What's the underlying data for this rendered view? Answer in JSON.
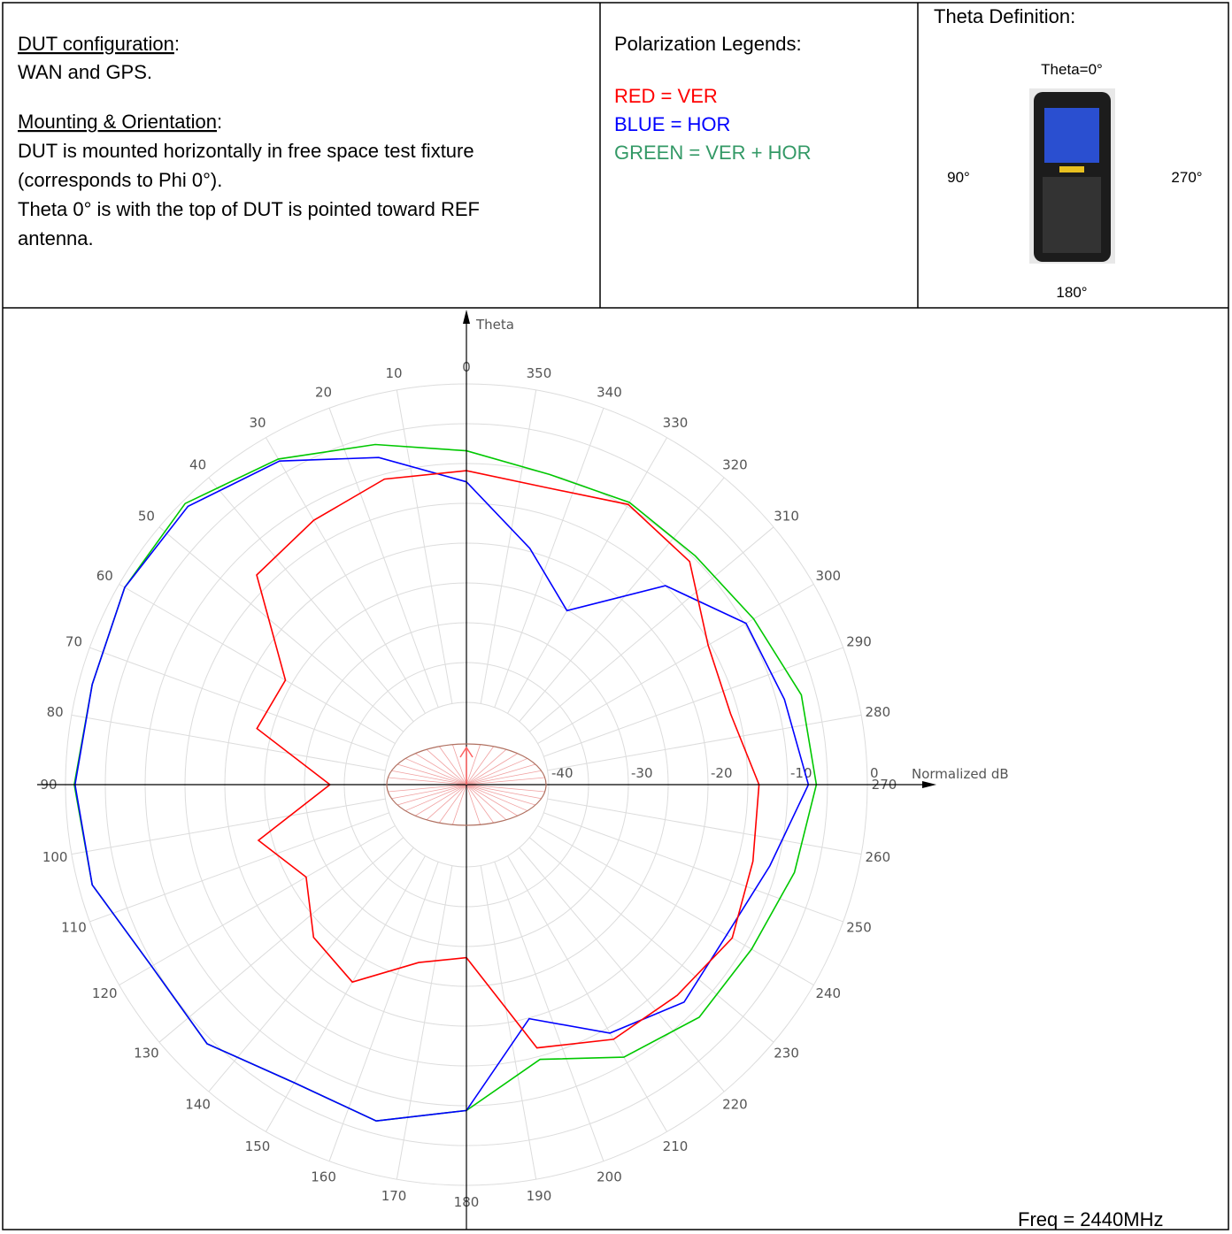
{
  "config": {
    "dut_heading": {
      "underlined": "DUT configuration",
      "rest": ":"
    },
    "dut_text": "WAN and GPS.",
    "mount_heading": {
      "underlined": "Mounting & Orientation",
      "rest": ":"
    },
    "mount_lines": [
      "DUT is mounted horizontally in free space test fixture",
      "(corresponds to Phi 0°).",
      "Theta 0° is with the top of DUT is pointed toward REF",
      "antenna."
    ]
  },
  "legend_title": "Polarization Legends:",
  "theta_definition": {
    "title": "Theta Definition:",
    "top": "Theta=0°",
    "left": "90°",
    "right": "270°",
    "bottom": "180°"
  },
  "freq": "Freq = 2440MHz",
  "chart_data": {
    "type": "polar",
    "theta_label": "Theta",
    "r_label": "Normalized dB",
    "x": [
      0,
      15,
      30,
      45,
      60,
      75,
      90,
      105,
      120,
      135,
      150,
      165,
      180,
      195,
      210,
      225,
      240,
      255,
      270,
      285,
      300,
      315,
      330,
      345
    ],
    "series": [
      {
        "name": "RED = VER",
        "color": "#ff0000",
        "values": [
          -10.9,
          -10.6,
          -12.0,
          -13.1,
          -24.1,
          -23.1,
          -33.2,
          -23.3,
          -27.1,
          -23.2,
          -21.7,
          -27.2,
          -28.6,
          -16.1,
          -13.4,
          -12.9,
          -11.8,
          -13.1,
          -13.6,
          -16.0,
          -15.3,
          -10.7,
          -9.7,
          -11.7
        ]
      },
      {
        "name": "BLUE = HOR",
        "color": "#0000ff",
        "values": [
          -12.3,
          -7.8,
          -3.4,
          -0.9,
          -0.8,
          -1.7,
          -1.2,
          -1.7,
          -4.7,
          -4.3,
          -7.1,
          -6.6,
          -9.4,
          -19.9,
          -14.3,
          -11.7,
          -12.6,
          -10.9,
          -7.4,
          -9.0,
          -9.8,
          -15.0,
          -25.1,
          -19.6
        ]
      },
      {
        "name": "GREEN = VER + HOR",
        "color": "#00c800",
        "values": [
          -8.4,
          -6.1,
          -3.1,
          -0.4,
          -0.8,
          -1.7,
          -1.1,
          -1.7,
          -4.7,
          -4.3,
          -7.1,
          -6.6,
          -9.4,
          -14.6,
          -10.8,
          -9.0,
          -9.0,
          -7.7,
          -6.4,
          -6.8,
          -8.7,
          -9.7,
          -9.4,
          -10.0
        ]
      }
    ],
    "rlim": [
      -40,
      0
    ],
    "rticks": [
      -40,
      -30,
      -20,
      -10,
      0
    ],
    "thetaticks": [
      0,
      10,
      20,
      30,
      40,
      50,
      60,
      70,
      80,
      90,
      100,
      110,
      120,
      130,
      140,
      150,
      160,
      170,
      180,
      190,
      200,
      210,
      220,
      230,
      240,
      250,
      260,
      270,
      280,
      290,
      300,
      310,
      320,
      330,
      340,
      350
    ],
    "grid": true
  }
}
